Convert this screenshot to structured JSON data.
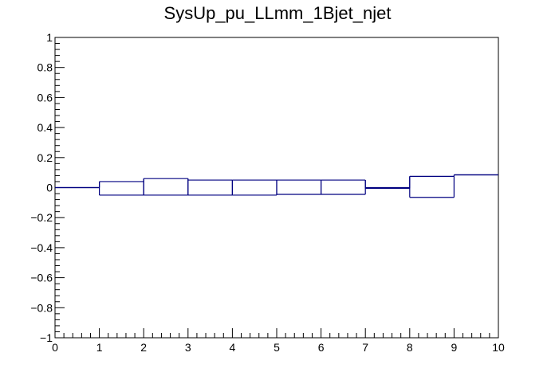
{
  "chart_data": {
    "type": "bar",
    "title": "SysUp_pu_LLmm_1Bjet_njet",
    "xlabel": "",
    "ylabel": "",
    "xlim": [
      0,
      10
    ],
    "ylim": [
      -1,
      1
    ],
    "grid": false,
    "x_ticks": [
      "0",
      "1",
      "2",
      "3",
      "4",
      "5",
      "6",
      "7",
      "8",
      "9",
      "10"
    ],
    "y_ticks": [
      "−1",
      "−0.8",
      "−0.6",
      "−0.4",
      "−0.2",
      "0",
      "0.2",
      "0.4",
      "0.6",
      "0.8",
      "1"
    ],
    "line_color": "#000080",
    "bins": [
      {
        "low": 0,
        "high": 1,
        "up": 0.0,
        "down": 0.0
      },
      {
        "low": 1,
        "high": 2,
        "up": 0.04,
        "down": -0.05
      },
      {
        "low": 2,
        "high": 3,
        "up": 0.06,
        "down": -0.05
      },
      {
        "low": 3,
        "high": 4,
        "up": 0.05,
        "down": -0.05
      },
      {
        "low": 4,
        "high": 5,
        "up": 0.05,
        "down": -0.05
      },
      {
        "low": 5,
        "high": 6,
        "up": 0.05,
        "down": -0.045
      },
      {
        "low": 6,
        "high": 7,
        "up": 0.05,
        "down": -0.045
      },
      {
        "low": 7,
        "high": 8,
        "up": 0.0,
        "down": -0.005
      },
      {
        "low": 8,
        "high": 9,
        "up": 0.075,
        "down": -0.065
      },
      {
        "low": 9,
        "high": 10,
        "up": 0.085,
        "down": 0.085
      }
    ]
  }
}
